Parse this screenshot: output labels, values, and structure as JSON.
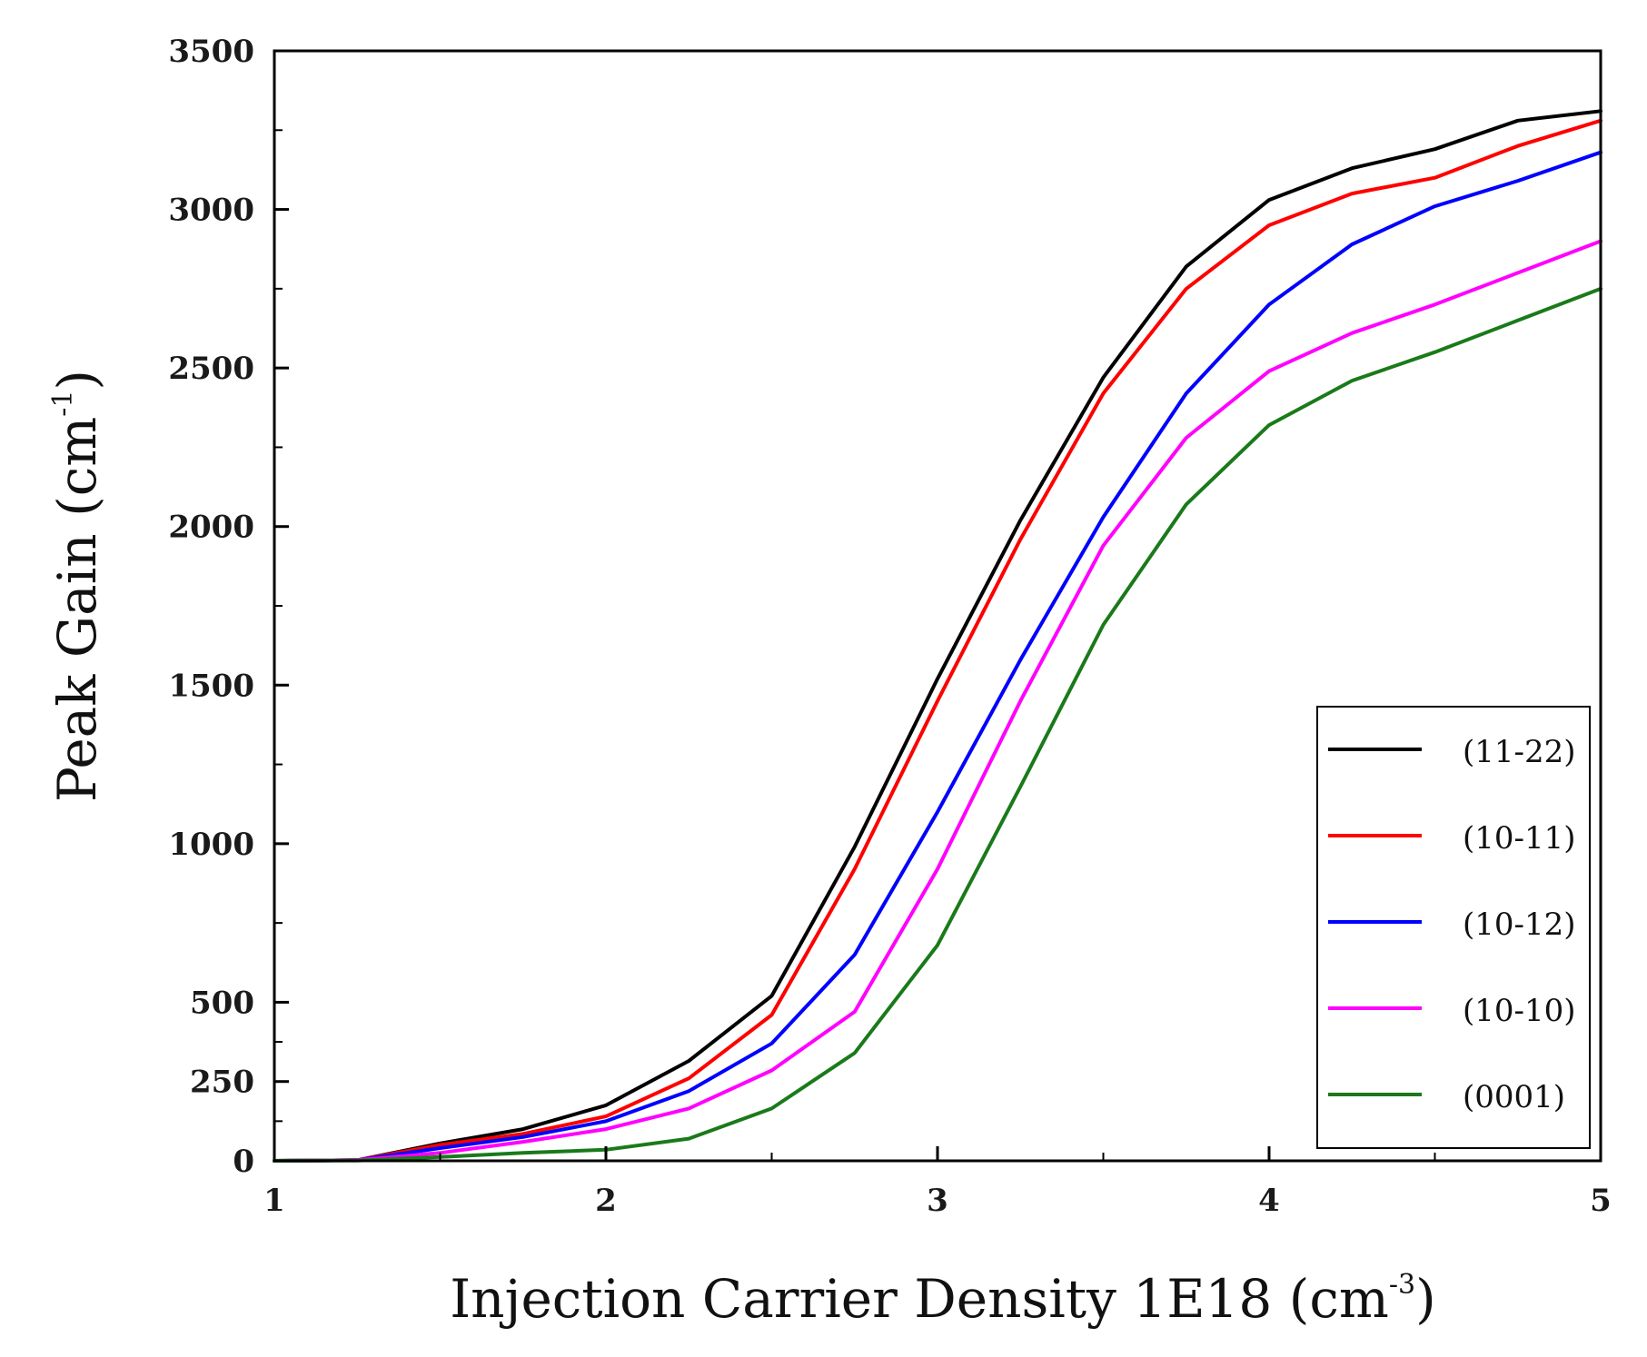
{
  "chart_data": {
    "type": "line",
    "title": "",
    "xlabel": {
      "main": "Injection Carrier Density 1E18 (cm",
      "sup": "-3",
      "close": ")"
    },
    "ylabel": {
      "main": "Peak Gain (cm",
      "sup": "-1",
      "close": ")"
    },
    "xlim": [
      1,
      5
    ],
    "ylim": [
      0,
      3500
    ],
    "xticks": [
      1,
      2,
      3,
      4,
      5
    ],
    "xtick_labels": [
      "1",
      "2",
      "3",
      "4",
      "5"
    ],
    "yticks": [
      0,
      250,
      500,
      1000,
      1500,
      2000,
      2500,
      3000,
      3500
    ],
    "ytick_labels": [
      "0",
      "250",
      "500",
      "1000",
      "1500",
      "2000",
      "2500",
      "3000",
      "3500"
    ],
    "yscale_note": "piecewise linear axis: 0–500 occupies the same height as 500–1000",
    "legend_position": "bottom-right",
    "grid": false,
    "x": [
      1,
      1.25,
      1.5,
      1.75,
      2,
      2.25,
      2.5,
      2.75,
      3,
      3.25,
      3.5,
      3.75,
      4,
      4.25,
      4.5,
      4.75,
      5
    ],
    "series": [
      {
        "name": "(11-22)",
        "color": "#000000",
        "values": [
          0,
          2,
          55,
          100,
          175,
          315,
          520,
          990,
          1520,
          2020,
          2470,
          2820,
          3030,
          3130,
          3190,
          3280,
          3310
        ]
      },
      {
        "name": "(10-11)",
        "color": "#ff0000",
        "values": [
          0,
          2,
          50,
          85,
          140,
          260,
          460,
          920,
          1450,
          1960,
          2420,
          2750,
          2950,
          3050,
          3100,
          3200,
          3280
        ]
      },
      {
        "name": "(10-12)",
        "color": "#0000ff",
        "values": [
          0,
          2,
          40,
          75,
          125,
          220,
          370,
          650,
          1100,
          1580,
          2030,
          2420,
          2700,
          2890,
          3010,
          3090,
          3180
        ]
      },
      {
        "name": "(10-10)",
        "color": "#ff00ff",
        "values": [
          0,
          2,
          25,
          60,
          100,
          165,
          285,
          470,
          920,
          1450,
          1940,
          2280,
          2490,
          2610,
          2700,
          2800,
          2900
        ]
      },
      {
        "name": "(0001)",
        "color": "#1a7a1a",
        "values": [
          0,
          1,
          12,
          25,
          35,
          70,
          165,
          340,
          680,
          1180,
          1690,
          2070,
          2320,
          2460,
          2550,
          2650,
          2750
        ]
      }
    ]
  }
}
